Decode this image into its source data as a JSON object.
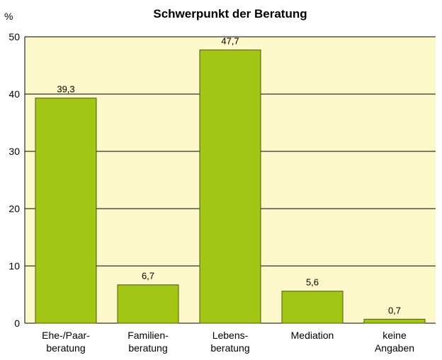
{
  "chart_data": {
    "type": "bar",
    "title": "Schwerpunkt der Beratung",
    "y_label": "%",
    "categories": [
      [
        "Ehe-/Paar-",
        "beratung"
      ],
      [
        "Familien-",
        "beratung"
      ],
      [
        "Lebens-",
        "beratung"
      ],
      [
        "Mediation"
      ],
      [
        "keine",
        "Angaben"
      ]
    ],
    "values": [
      39.3,
      6.7,
      47.7,
      5.6,
      0.7
    ],
    "value_labels": [
      "39,3",
      "6,7",
      "47,7",
      "5,6",
      "0,7"
    ],
    "color": "#a3c615",
    "ylim": [
      0,
      50
    ],
    "yticks": [
      0,
      10,
      20,
      30,
      40,
      50
    ],
    "grid": true
  }
}
